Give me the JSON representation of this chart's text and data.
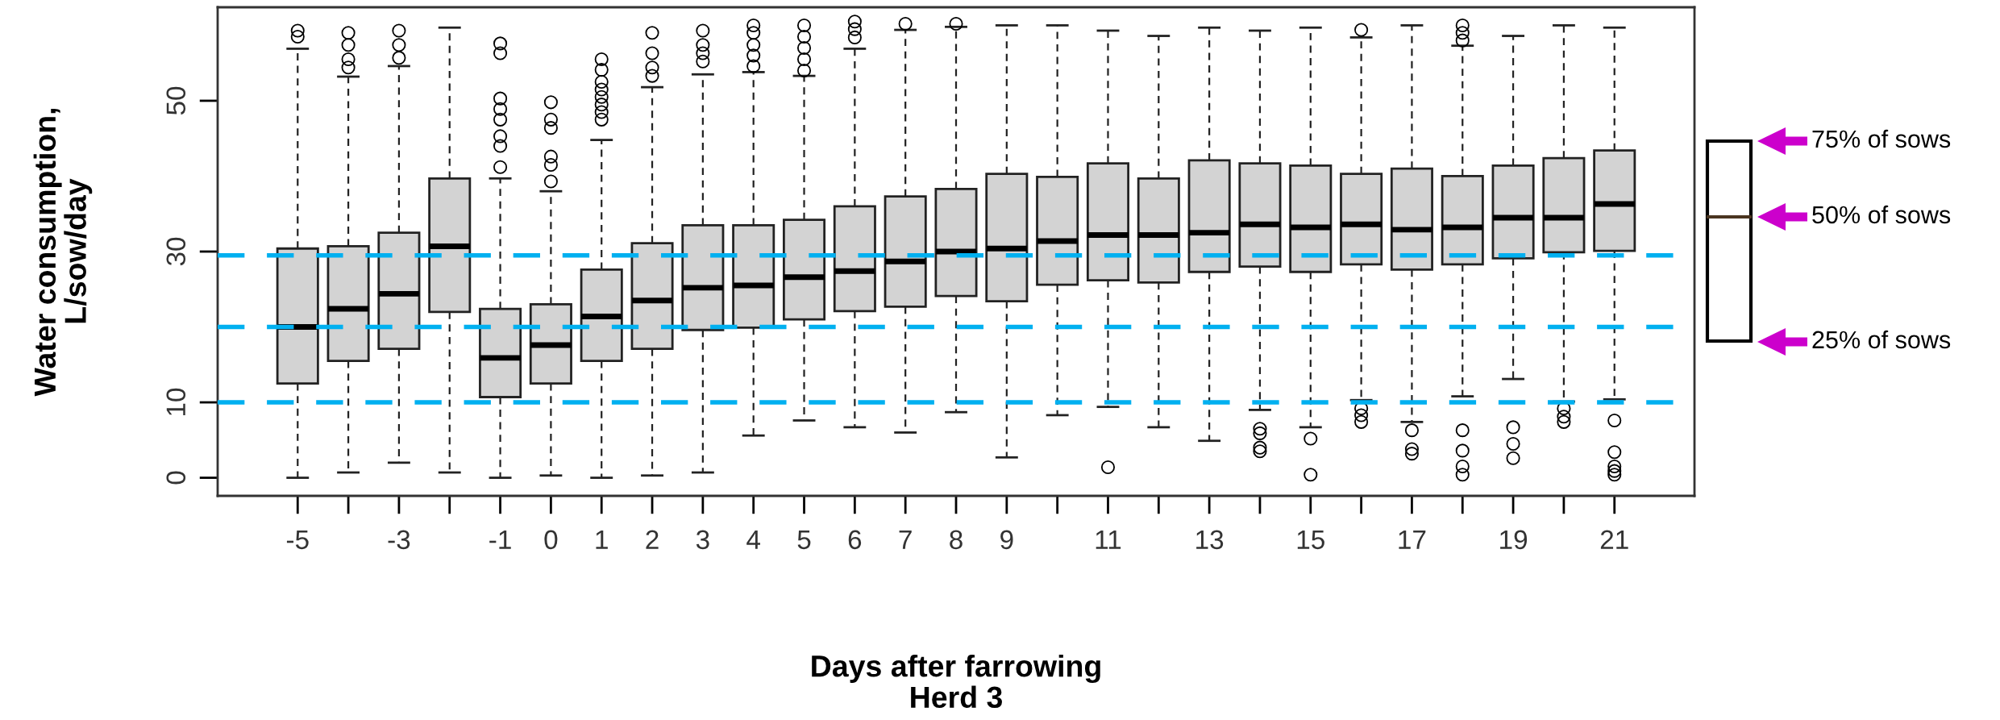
{
  "chart_data": {
    "type": "box",
    "title": "Herd 3",
    "xlabel": "Days after farrowing",
    "ylabel": "Water consumption,\nL/sow/day",
    "categories": [
      "-5",
      null,
      "-3",
      null,
      "-1",
      "0",
      "1",
      "2",
      "3",
      "4",
      "5",
      "6",
      "7",
      "8",
      "9",
      null,
      "11",
      null,
      "13",
      null,
      "15",
      null,
      "17",
      null,
      "19",
      null,
      "21"
    ],
    "boxes": [
      {
        "low": 0,
        "q1": 12.5,
        "median": 20.0,
        "q3": 30.4,
        "high": 56.9,
        "outliers": [
          58.5,
          59.3
        ]
      },
      {
        "low": 0.7,
        "q1": 15.5,
        "median": 22.4,
        "q3": 30.7,
        "high": 53.2,
        "outliers": [
          54.4,
          55.5,
          57.4,
          59
        ]
      },
      {
        "low": 2.0,
        "q1": 17.1,
        "median": 24.4,
        "q3": 32.5,
        "high": 54.6,
        "outliers": [
          55.7,
          57.4,
          59.3
        ]
      },
      {
        "low": 0.7,
        "q1": 22.0,
        "median": 30.7,
        "q3": 39.7,
        "high": 59.7
      },
      {
        "low": 0,
        "q1": 10.7,
        "median": 15.9,
        "q3": 22.4,
        "high": 39.7,
        "outliers": [
          41.2,
          44,
          45.3,
          47.5,
          48.9,
          50.3,
          56.3,
          57.6
        ]
      },
      {
        "low": 0.3,
        "q1": 12.5,
        "median": 17.6,
        "q3": 23.0,
        "high": 38.0,
        "outliers": [
          39.3,
          41.5,
          42.6,
          46.4,
          47.5,
          49.8
        ]
      },
      {
        "low": 0,
        "q1": 15.5,
        "median": 21.4,
        "q3": 27.6,
        "high": 44.8,
        "outliers": [
          47.5,
          48.5,
          49.5,
          50.5,
          51.5,
          52.5,
          54.1,
          55.5
        ]
      },
      {
        "low": 0.3,
        "q1": 17.1,
        "median": 23.5,
        "q3": 31.1,
        "high": 51.8,
        "outliers": [
          53.3,
          54.4,
          56.3,
          59
        ]
      },
      {
        "low": 0.7,
        "q1": 19.6,
        "median": 25.2,
        "q3": 33.5,
        "high": 53.5,
        "outliers": [
          55.2,
          56.3,
          57.4,
          59.3
        ]
      },
      {
        "low": 5.6,
        "q1": 19.9,
        "median": 25.5,
        "q3": 33.5,
        "high": 53.8,
        "outliers": [
          54.6,
          56,
          57.4,
          59,
          60
        ]
      },
      {
        "low": 7.6,
        "q1": 21.0,
        "median": 26.6,
        "q3": 34.2,
        "high": 53.3,
        "outliers": [
          54,
          55.5,
          57,
          58.5,
          60
        ]
      },
      {
        "low": 6.7,
        "q1": 22.1,
        "median": 27.4,
        "q3": 36.0,
        "high": 56.9,
        "outliers": [
          58.4,
          59.5,
          60.5
        ]
      },
      {
        "low": 6.0,
        "q1": 22.7,
        "median": 28.7,
        "q3": 37.3,
        "high": 59.4,
        "outliers": [
          60.2
        ]
      },
      {
        "low": 8.7,
        "q1": 24.1,
        "median": 30.0,
        "q3": 38.3,
        "high": 59.8,
        "outliers": [
          60.2
        ]
      },
      {
        "low": 2.7,
        "q1": 23.4,
        "median": 30.4,
        "q3": 40.3,
        "high": 60.0
      },
      {
        "low": 8.3,
        "q1": 25.6,
        "median": 31.4,
        "q3": 39.9,
        "high": 60.0
      },
      {
        "low": 9.4,
        "q1": 26.2,
        "median": 32.2,
        "q3": 41.7,
        "high": 59.3,
        "outliers": [
          1.4
        ]
      },
      {
        "low": 6.7,
        "q1": 25.9,
        "median": 32.2,
        "q3": 39.7,
        "high": 58.6
      },
      {
        "low": 4.9,
        "q1": 27.3,
        "median": 32.5,
        "q3": 42.1,
        "high": 59.7
      },
      {
        "low": 9.0,
        "q1": 28.0,
        "median": 33.6,
        "q3": 41.7,
        "high": 59.3,
        "outliers": [
          3.5,
          4.0,
          5.9,
          6.5
        ]
      },
      {
        "low": 6.7,
        "q1": 27.3,
        "median": 33.2,
        "q3": 41.4,
        "high": 59.7,
        "outliers": [
          0.4,
          5.2
        ]
      },
      {
        "low": 10.3,
        "q1": 28.3,
        "median": 33.6,
        "q3": 40.3,
        "high": 58.4,
        "outliers": [
          7.4,
          8.3,
          9.2,
          59.4
        ]
      },
      {
        "low": 7.4,
        "q1": 27.6,
        "median": 32.9,
        "q3": 41.0,
        "high": 60.0,
        "outliers": [
          3.2,
          3.8,
          6.3
        ]
      },
      {
        "low": 10.8,
        "q1": 28.3,
        "median": 33.2,
        "q3": 40.0,
        "high": 57.3,
        "outliers": [
          0.4,
          1.5,
          3.6,
          6.3,
          58,
          59,
          60
        ]
      },
      {
        "low": 13.1,
        "q1": 29.1,
        "median": 34.5,
        "q3": 41.4,
        "high": 58.6,
        "outliers": [
          2.6,
          4.5,
          6.7
        ]
      },
      {
        "low": 10.1,
        "q1": 29.9,
        "median": 34.5,
        "q3": 42.4,
        "high": 60.0,
        "outliers": [
          7.4,
          8.1,
          9.2
        ]
      },
      {
        "low": 10.4,
        "q1": 30.1,
        "median": 36.3,
        "q3": 43.4,
        "high": 59.7,
        "outliers": [
          0.4,
          0.9,
          1.5,
          3.4,
          7.6
        ]
      }
    ],
    "color": "#d3d3d3",
    "ylim": [
      -2.4,
      62.4
    ],
    "yticks": [
      0,
      10,
      30,
      50
    ],
    "ref_lines": [
      {
        "axis": "y",
        "value": 29.5,
        "label": null,
        "color": "#00b0f0",
        "line_style": "dashed"
      },
      {
        "axis": "y",
        "value": 20,
        "label": null,
        "color": "#00b0f0",
        "line_style": "dashed"
      },
      {
        "axis": "y",
        "value": 10,
        "label": null,
        "color": "#00b0f0",
        "line_style": "dashed"
      }
    ],
    "annotations": [
      "75% of sows",
      "50% of sows",
      "25% of sows"
    ]
  }
}
